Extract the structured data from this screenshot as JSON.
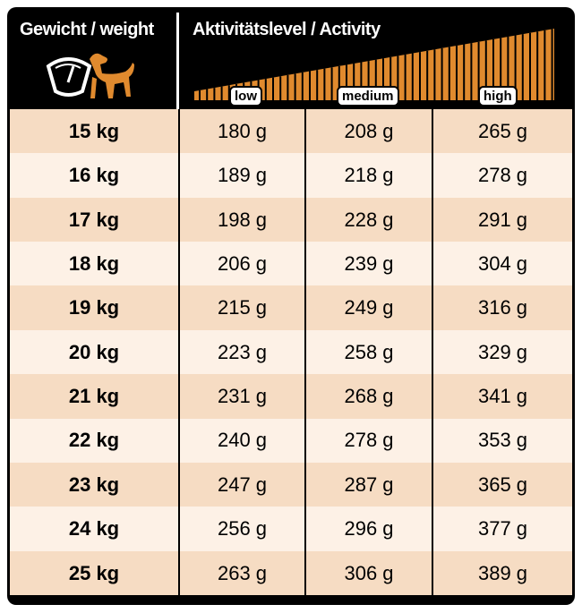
{
  "header": {
    "weight_label": "Gewicht / weight",
    "activity_label": "Aktivitätslevel / Activity",
    "levels": [
      "low",
      "medium",
      "high"
    ]
  },
  "table": {
    "rows": [
      [
        "15 kg",
        "180 g",
        "208 g",
        "265 g"
      ],
      [
        "16 kg",
        "189 g",
        "218 g",
        "278 g"
      ],
      [
        "17 kg",
        "198 g",
        "228 g",
        "291 g"
      ],
      [
        "18 kg",
        "206 g",
        "239 g",
        "304 g"
      ],
      [
        "19 kg",
        "215 g",
        "249 g",
        "316 g"
      ],
      [
        "20 kg",
        "223 g",
        "258 g",
        "329 g"
      ],
      [
        "21 kg",
        "231 g",
        "268 g",
        "341 g"
      ],
      [
        "22 kg",
        "240 g",
        "278 g",
        "353 g"
      ],
      [
        "23 kg",
        "247 g",
        "287 g",
        "365 g"
      ],
      [
        "24 kg",
        "256 g",
        "296 g",
        "377 g"
      ],
      [
        "25 kg",
        "263 g",
        "306 g",
        "389 g"
      ]
    ]
  }
}
